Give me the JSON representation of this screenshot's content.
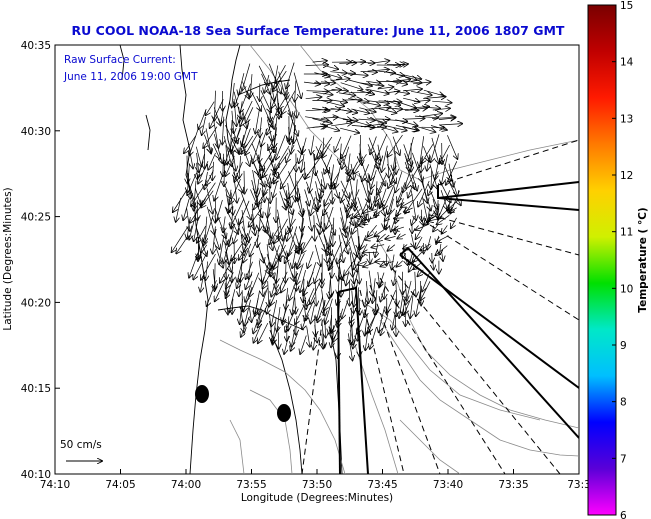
{
  "title": "RU COOL  NOAA-18  Sea Surface Temperature:  June 11, 2006 1807 GMT",
  "annotation": {
    "line1": "Raw Surface Current:",
    "line2": "June 11, 2006 19:00 GMT"
  },
  "scale_label": "50 cm/s",
  "x_axis": {
    "label": "Longitude (Degrees:Minutes)",
    "ticks": [
      "74:10",
      "74:05",
      "74:00",
      "73:55",
      "73:50",
      "73:45",
      "73:40",
      "73:35",
      "73:3"
    ]
  },
  "y_axis": {
    "label": "Latitude (Degrees:Minutes)",
    "ticks": [
      "40:35",
      "40:30",
      "40:25",
      "40:20",
      "40:15",
      "40:10"
    ]
  },
  "colorbar": {
    "label": "Temperature ( °C)",
    "ticks": [
      "15",
      "14",
      "13",
      "12",
      "11",
      "10",
      "9",
      "8",
      "7",
      "6"
    ],
    "range": [
      6,
      15
    ],
    "colors": [
      "#ff00ff",
      "#5a00d8",
      "#0000ff",
      "#00bfff",
      "#00e8c8",
      "#00e000",
      "#d0f000",
      "#ffd000",
      "#ff7a00",
      "#ff1a00",
      "#c00000",
      "#7a0000"
    ]
  },
  "chart_data": {
    "type": "map",
    "xlim": [
      "74:10",
      "73:30"
    ],
    "ylim": [
      "40:10",
      "40:35"
    ],
    "series": [
      {
        "name": "Raw Surface Current",
        "description_units": "cm/s"
      }
    ]
  }
}
